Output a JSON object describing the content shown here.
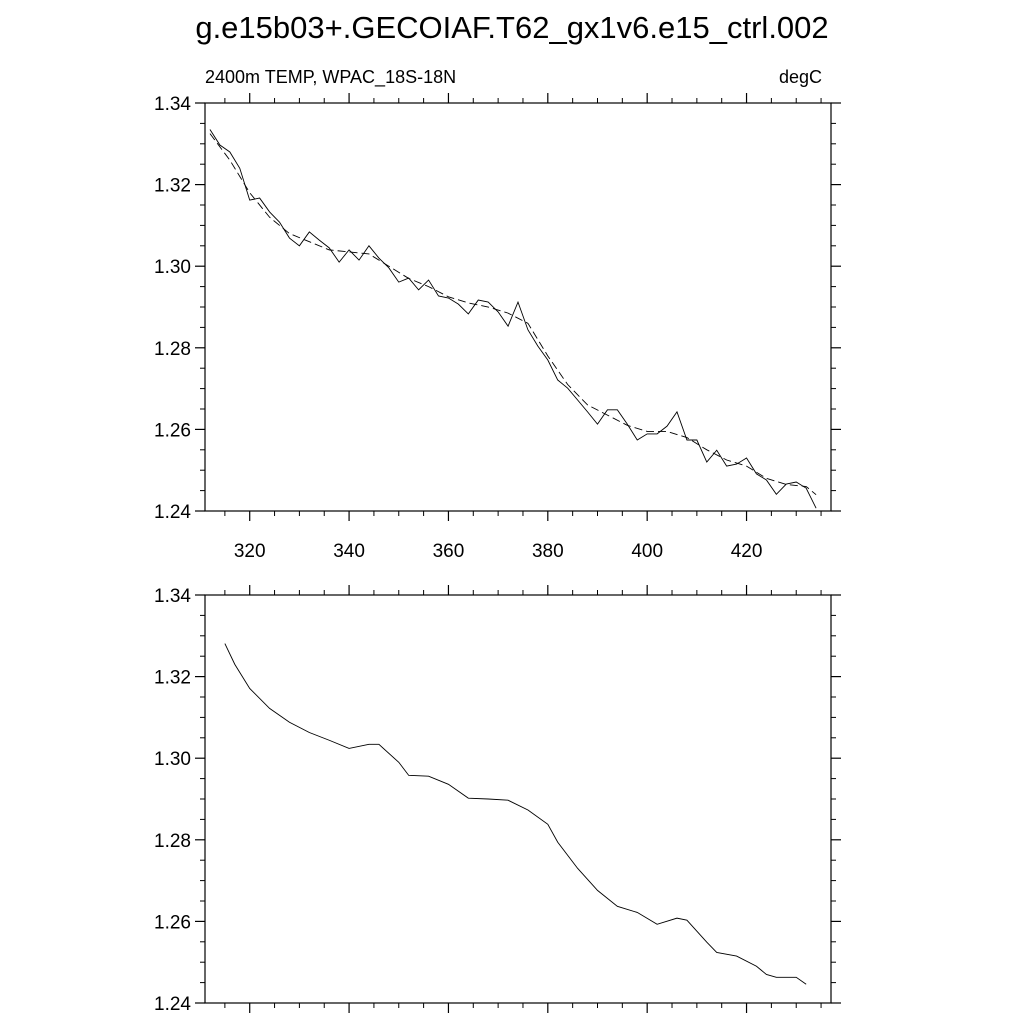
{
  "chart_data": [
    {
      "type": "line",
      "title": "g.e15b03+.GECOIAF.T62_gx1v6.e15_ctrl.002",
      "left_string": "2400m TEMP, WPAC_18S-18N",
      "right_string": "degC",
      "xlim": [
        311,
        437
      ],
      "xticks": [
        320,
        340,
        360,
        380,
        400,
        420
      ],
      "xminorticks": [
        315,
        325,
        330,
        335,
        345,
        350,
        355,
        365,
        370,
        375,
        385,
        390,
        395,
        405,
        410,
        415,
        425,
        430,
        435
      ],
      "show_xtick_labels": true,
      "ylim": [
        1.24,
        1.34
      ],
      "yticks": [
        1.24,
        1.26,
        1.28,
        {
          "value": 1.3,
          "label": "1.30"
        },
        1.32,
        1.34
      ],
      "yminorticks": [
        1.245,
        1.25,
        1.255,
        1.265,
        1.27,
        1.275,
        1.285,
        1.29,
        1.295,
        1.305,
        1.31,
        1.315,
        1.325,
        1.33,
        1.335
      ],
      "series": [
        {
          "color": "#000000",
          "dash": false,
          "x": [
            312,
            314,
            316,
            318,
            320,
            322,
            324,
            326,
            328,
            330,
            332,
            334,
            336,
            338,
            340,
            342,
            344,
            346,
            348,
            350,
            352,
            354,
            356,
            358,
            360,
            362,
            364,
            366,
            368,
            370,
            372,
            374,
            376,
            378,
            380,
            382,
            384,
            386,
            388,
            390,
            392,
            394,
            396,
            398,
            400,
            402,
            404,
            406,
            408,
            410,
            412,
            414,
            416,
            418,
            420,
            422,
            424,
            426,
            428,
            430,
            432,
            434
          ],
          "values": [
            1.3335,
            1.3297,
            1.328,
            1.324,
            1.3162,
            1.3167,
            1.3133,
            1.3108,
            1.3069,
            1.305,
            1.3084,
            1.3064,
            1.3045,
            1.301,
            1.304,
            1.3015,
            1.305,
            1.302,
            1.2996,
            1.2961,
            1.2971,
            1.2942,
            1.2966,
            1.2927,
            1.2922,
            1.2907,
            1.2883,
            1.2917,
            1.2912,
            1.2888,
            1.2853,
            1.2912,
            1.2844,
            1.2804,
            1.277,
            1.2721,
            1.2701,
            1.2672,
            1.2643,
            1.2613,
            1.2648,
            1.2648,
            1.2613,
            1.2574,
            1.2589,
            1.2589,
            1.2608,
            1.2643,
            1.2574,
            1.2574,
            1.252,
            1.2549,
            1.251,
            1.2515,
            1.253,
            1.2491,
            1.2476,
            1.2441,
            1.2466,
            1.2471,
            1.2456,
            1.2407
          ]
        },
        {
          "color": "#000000",
          "dash": true,
          "x": [
            312,
            316,
            320,
            324,
            328,
            332,
            336,
            340,
            344,
            348,
            352,
            356,
            360,
            364,
            368,
            372,
            376,
            380,
            384,
            388,
            392,
            396,
            400,
            404,
            408,
            412,
            416,
            420,
            424,
            428,
            432,
            434
          ],
          "values": [
            1.3325,
            1.326,
            1.318,
            1.312,
            1.308,
            1.306,
            1.304,
            1.3035,
            1.303,
            1.3,
            1.297,
            1.295,
            1.2925,
            1.291,
            1.29,
            1.2885,
            1.286,
            1.278,
            1.271,
            1.266,
            1.2635,
            1.261,
            1.2595,
            1.2595,
            1.258,
            1.255,
            1.2525,
            1.251,
            1.248,
            1.2465,
            1.246,
            1.244
          ]
        }
      ]
    },
    {
      "type": "line",
      "xlim": [
        311,
        437
      ],
      "xticks": [
        320,
        340,
        360,
        380,
        400,
        420
      ],
      "xminorticks": [
        315,
        325,
        330,
        335,
        345,
        350,
        355,
        365,
        370,
        375,
        385,
        390,
        395,
        405,
        410,
        415,
        425,
        430,
        435
      ],
      "show_xtick_labels": false,
      "ylim": [
        1.24,
        1.34
      ],
      "yticks": [
        1.24,
        1.26,
        1.28,
        {
          "value": 1.3,
          "label": "1.30"
        },
        1.32,
        1.34
      ],
      "yminorticks": [
        1.245,
        1.25,
        1.255,
        1.265,
        1.27,
        1.275,
        1.285,
        1.29,
        1.295,
        1.305,
        1.31,
        1.315,
        1.325,
        1.33,
        1.335
      ],
      "series": [
        {
          "color": "#000000",
          "dash": false,
          "x": [
            315,
            317,
            320,
            324,
            328,
            332,
            336,
            340,
            344,
            346,
            350,
            352,
            356,
            360,
            364,
            368,
            372,
            376,
            380,
            382,
            386,
            390,
            394,
            398,
            402,
            406,
            408,
            412,
            414,
            418,
            422,
            424,
            426,
            430,
            432
          ],
          "values": [
            1.3281,
            1.323,
            1.3171,
            1.3122,
            1.3088,
            1.3063,
            1.3044,
            1.3024,
            1.3034,
            1.3034,
            1.299,
            1.2958,
            1.2956,
            1.2936,
            1.2902,
            1.29,
            1.2897,
            1.2873,
            1.2838,
            1.2794,
            1.273,
            1.2676,
            1.2637,
            1.2622,
            1.2593,
            1.2608,
            1.2603,
            1.2549,
            1.2524,
            1.2515,
            1.249,
            1.247,
            1.2463,
            1.2463,
            1.2446
          ]
        }
      ]
    }
  ]
}
